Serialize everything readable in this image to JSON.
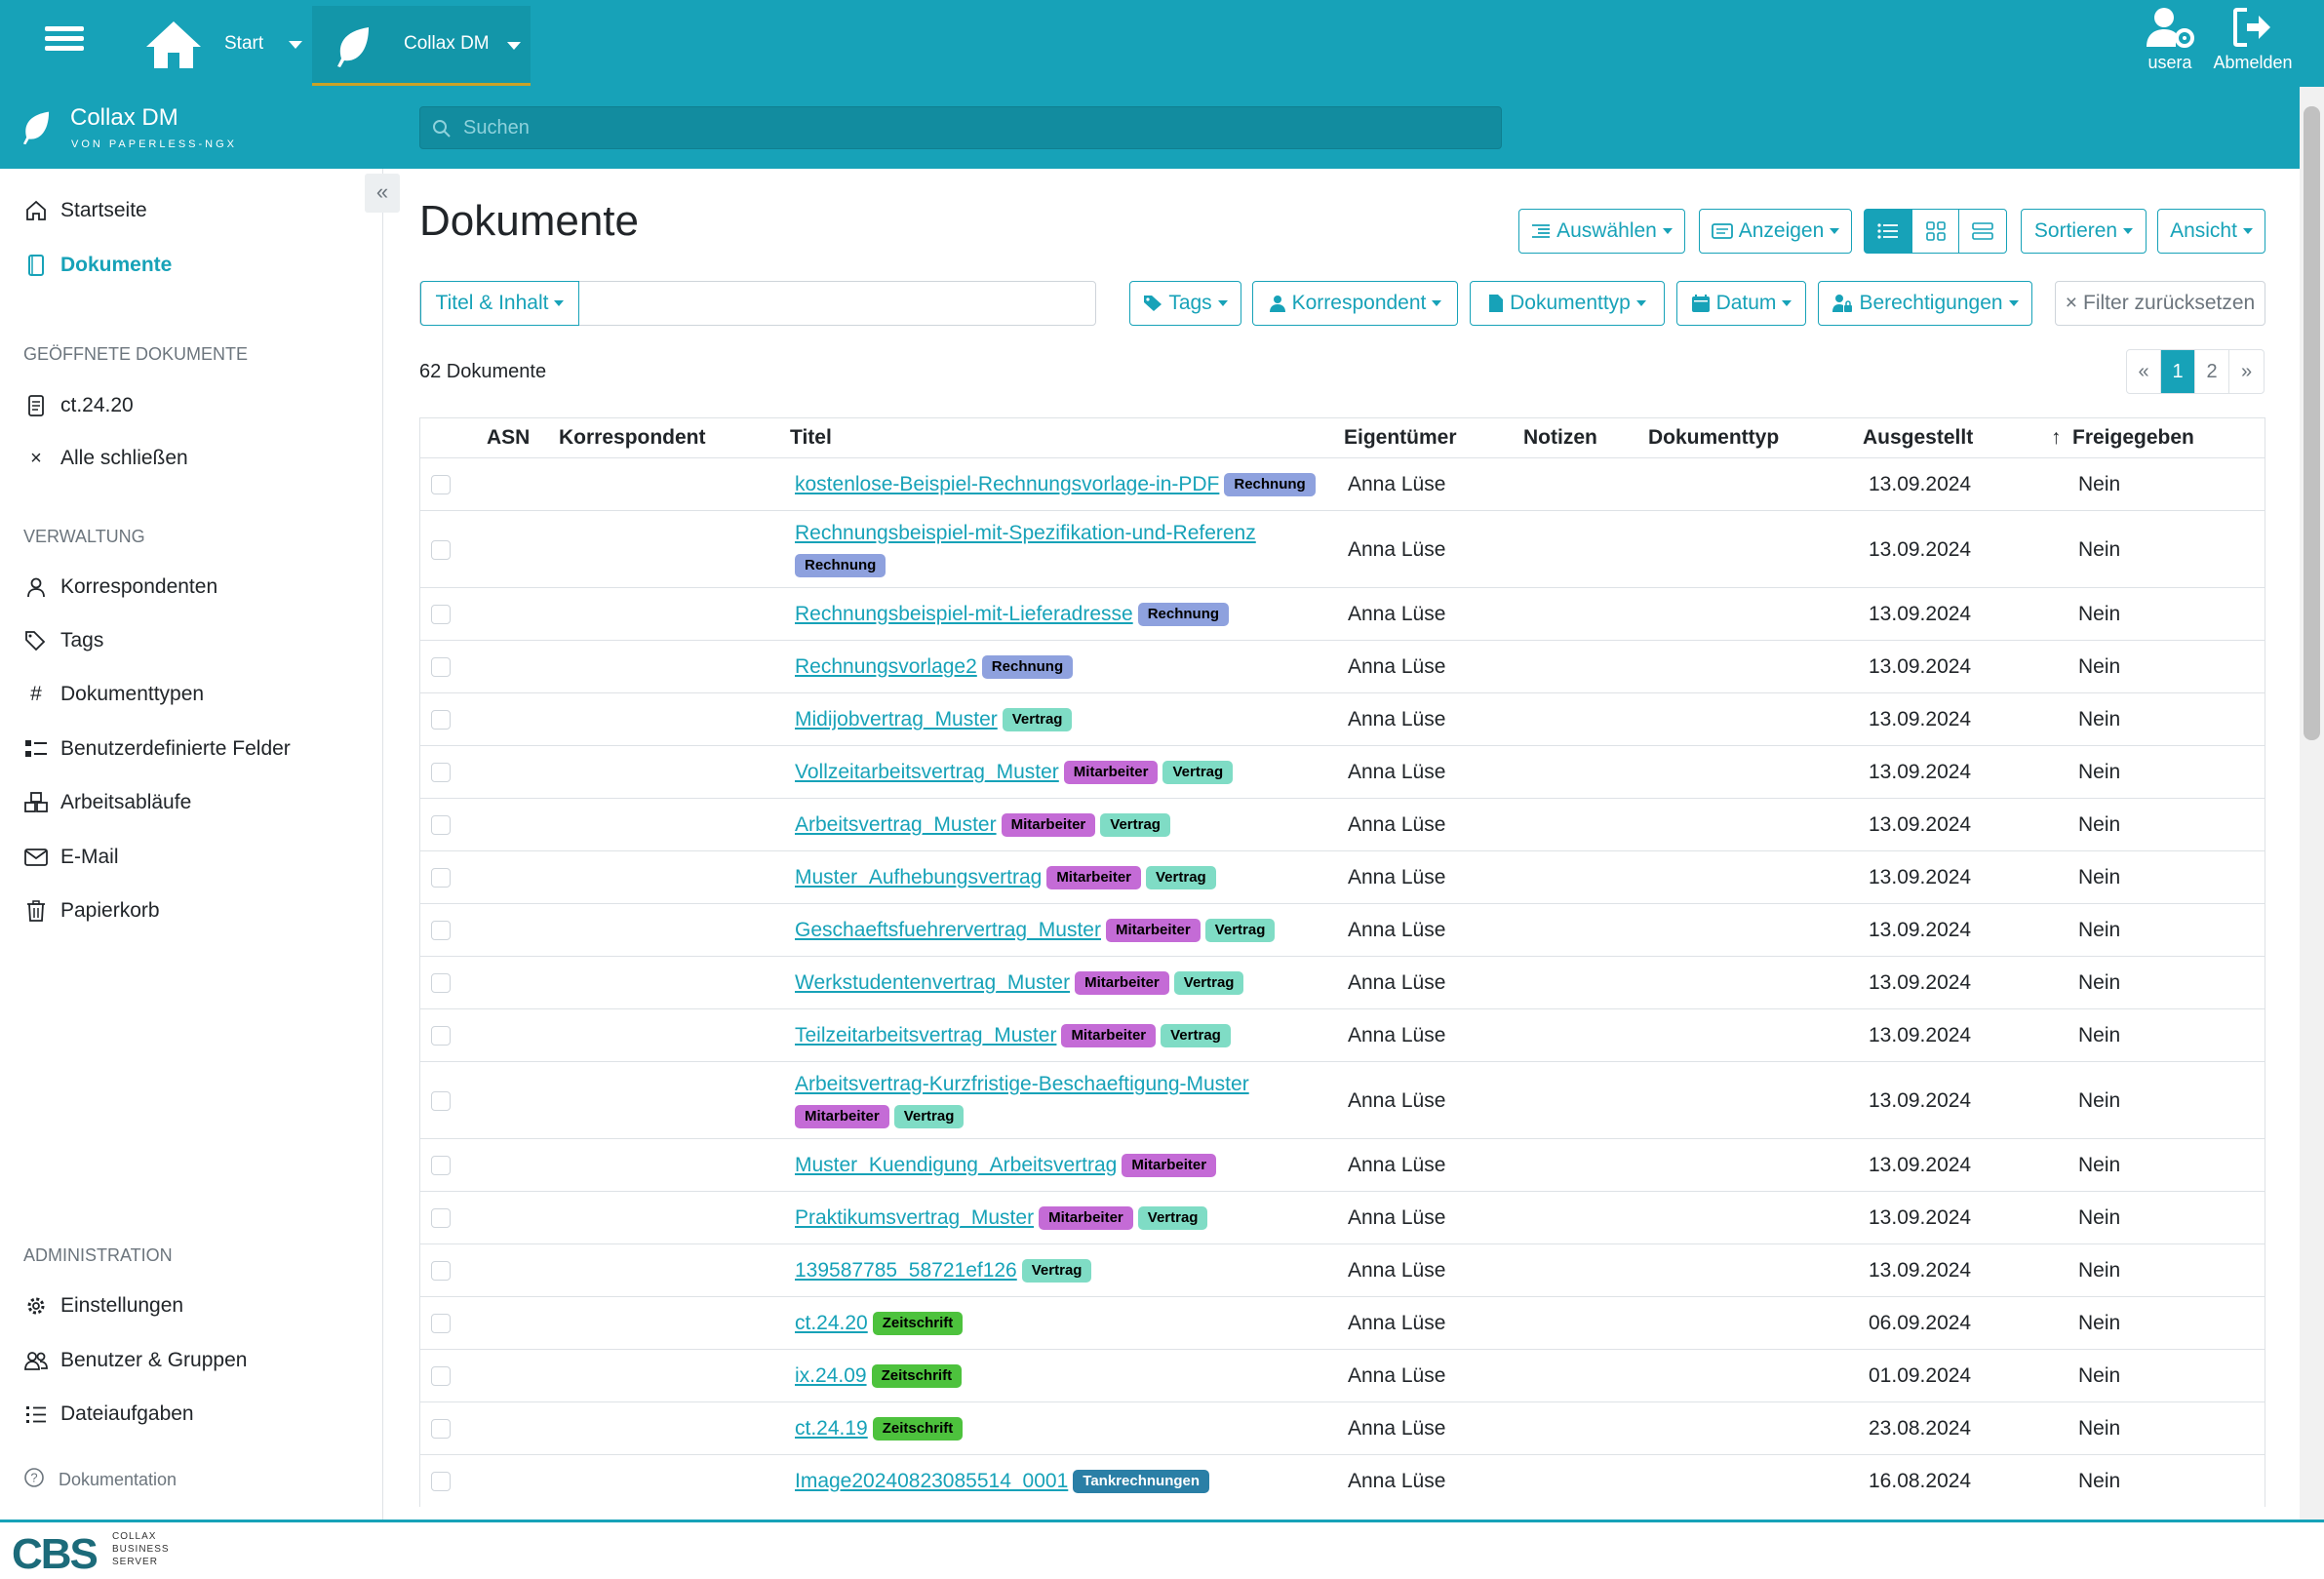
{
  "topbar": {
    "start_label": "Start",
    "app_tab_label": "Collax DM",
    "user_label": "usera",
    "logout_label": "Abmelden"
  },
  "brand": {
    "title": "Collax DM",
    "subtitle": "VON PAPERLESS-NGX"
  },
  "search": {
    "placeholder": "Suchen"
  },
  "sidebar": {
    "items": [
      {
        "label": "Startseite",
        "icon": "house-icon"
      },
      {
        "label": "Dokumente",
        "icon": "document-icon"
      }
    ],
    "open_docs_heading": "GEÖFFNETE DOKUMENTE",
    "open_docs": [
      {
        "label": "ct.24.20",
        "icon": "file-text-icon"
      },
      {
        "label": "Alle schließen",
        "icon": "close-icon"
      }
    ],
    "admin_heading": "VERWALTUNG",
    "admin_items": [
      {
        "label": "Korrespondenten",
        "icon": "person-icon"
      },
      {
        "label": "Tags",
        "icon": "tags-icon"
      },
      {
        "label": "Dokumenttypen",
        "icon": "hash-icon"
      },
      {
        "label": "Benutzerdefinierte Felder",
        "icon": "ui-checks-icon"
      },
      {
        "label": "Arbeitsabläufe",
        "icon": "boxes-icon"
      },
      {
        "label": "E-Mail",
        "icon": "envelope-icon"
      },
      {
        "label": "Papierkorb",
        "icon": "trash-icon"
      }
    ],
    "administration_heading": "ADMINISTRATION",
    "administration_items": [
      {
        "label": "Einstellungen",
        "icon": "gear-icon"
      },
      {
        "label": "Benutzer & Gruppen",
        "icon": "people-icon"
      },
      {
        "label": "Dateiaufgaben",
        "icon": "list-task-icon"
      }
    ],
    "docs_link": "Dokumentation"
  },
  "page": {
    "title": "Dokumente",
    "toolbar": {
      "select": "Auswählen",
      "show": "Anzeigen",
      "sort": "Sortieren",
      "view": "Ansicht"
    },
    "filters": {
      "title_content": "Titel & Inhalt",
      "tags": "Tags",
      "correspondent": "Korrespondent",
      "doctype": "Dokumenttyp",
      "date": "Datum",
      "permissions": "Berechtigungen",
      "reset": "Filter zurücksetzen"
    },
    "count": "62 Dokumente",
    "pager": [
      "«",
      "1",
      "2",
      "»"
    ],
    "pager_current": "1"
  },
  "table": {
    "headers": {
      "asn": "ASN",
      "correspondent": "Korrespondent",
      "title": "Titel",
      "owner": "Eigentümer",
      "notes": "Notizen",
      "doctype": "Dokumenttyp",
      "issued": "Ausgestellt",
      "shared": "Freigegeben"
    },
    "tag_colors": {
      "Rechnung": "#8ea1de",
      "Vertrag": "#7fdcc5",
      "Mitarbeiter": "#c46bd6",
      "Zeitschrift": "#4dc23d",
      "Tankrechnungen": "#2a7fa6"
    },
    "rows": [
      {
        "title": "kostenlose-Beispiel-Rechnungsvorlage-in-PDF",
        "tags": [
          "Rechnung"
        ],
        "owner": "Anna Lüse",
        "date": "13.09.2024",
        "shared": "Nein"
      },
      {
        "title": "Rechnungsbeispiel-mit-Spezifikation-und-Referenz",
        "tags": [
          "Rechnung"
        ],
        "owner": "Anna Lüse",
        "date": "13.09.2024",
        "shared": "Nein"
      },
      {
        "title": "Rechnungsbeispiel-mit-Lieferadresse",
        "tags": [
          "Rechnung"
        ],
        "owner": "Anna Lüse",
        "date": "13.09.2024",
        "shared": "Nein"
      },
      {
        "title": "Rechnungsvorlage2",
        "tags": [
          "Rechnung"
        ],
        "owner": "Anna Lüse",
        "date": "13.09.2024",
        "shared": "Nein"
      },
      {
        "title": "Midijobvertrag_Muster",
        "tags": [
          "Vertrag"
        ],
        "owner": "Anna Lüse",
        "date": "13.09.2024",
        "shared": "Nein"
      },
      {
        "title": "Vollzeitarbeitsvertrag_Muster",
        "tags": [
          "Mitarbeiter",
          "Vertrag"
        ],
        "owner": "Anna Lüse",
        "date": "13.09.2024",
        "shared": "Nein"
      },
      {
        "title": "Arbeitsvertrag_Muster",
        "tags": [
          "Mitarbeiter",
          "Vertrag"
        ],
        "owner": "Anna Lüse",
        "date": "13.09.2024",
        "shared": "Nein"
      },
      {
        "title": "Muster_Aufhebungsvertrag",
        "tags": [
          "Mitarbeiter",
          "Vertrag"
        ],
        "owner": "Anna Lüse",
        "date": "13.09.2024",
        "shared": "Nein"
      },
      {
        "title": "Geschaeftsfuehrervertrag_Muster",
        "tags": [
          "Mitarbeiter",
          "Vertrag"
        ],
        "owner": "Anna Lüse",
        "date": "13.09.2024",
        "shared": "Nein"
      },
      {
        "title": "Werkstudentenvertrag_Muster",
        "tags": [
          "Mitarbeiter",
          "Vertrag"
        ],
        "owner": "Anna Lüse",
        "date": "13.09.2024",
        "shared": "Nein"
      },
      {
        "title": "Teilzeitarbeitsvertrag_Muster",
        "tags": [
          "Mitarbeiter",
          "Vertrag"
        ],
        "owner": "Anna Lüse",
        "date": "13.09.2024",
        "shared": "Nein"
      },
      {
        "title": "Arbeitsvertrag-Kurzfristige-Beschaeftigung-Muster",
        "tags": [
          "Mitarbeiter",
          "Vertrag"
        ],
        "owner": "Anna Lüse",
        "date": "13.09.2024",
        "shared": "Nein"
      },
      {
        "title": "Muster_Kuendigung_Arbeitsvertrag",
        "tags": [
          "Mitarbeiter"
        ],
        "owner": "Anna Lüse",
        "date": "13.09.2024",
        "shared": "Nein"
      },
      {
        "title": "Praktikumsvertrag_Muster",
        "tags": [
          "Mitarbeiter",
          "Vertrag"
        ],
        "owner": "Anna Lüse",
        "date": "13.09.2024",
        "shared": "Nein"
      },
      {
        "title": "139587785_58721ef126",
        "tags": [
          "Vertrag"
        ],
        "owner": "Anna Lüse",
        "date": "13.09.2024",
        "shared": "Nein"
      },
      {
        "title": "ct.24.20",
        "tags": [
          "Zeitschrift"
        ],
        "owner": "Anna Lüse",
        "date": "06.09.2024",
        "shared": "Nein"
      },
      {
        "title": "ix.24.09",
        "tags": [
          "Zeitschrift"
        ],
        "owner": "Anna Lüse",
        "date": "01.09.2024",
        "shared": "Nein"
      },
      {
        "title": "ct.24.19",
        "tags": [
          "Zeitschrift"
        ],
        "owner": "Anna Lüse",
        "date": "23.08.2024",
        "shared": "Nein"
      },
      {
        "title": "Image20240823085514_0001",
        "tags": [
          "Tankrechnungen"
        ],
        "owner": "Anna Lüse",
        "date": "16.08.2024",
        "shared": "Nein"
      }
    ]
  },
  "footer": {
    "logo": "CBS",
    "sub": [
      "COLLAX",
      "BUSINESS",
      "SERVER"
    ]
  }
}
